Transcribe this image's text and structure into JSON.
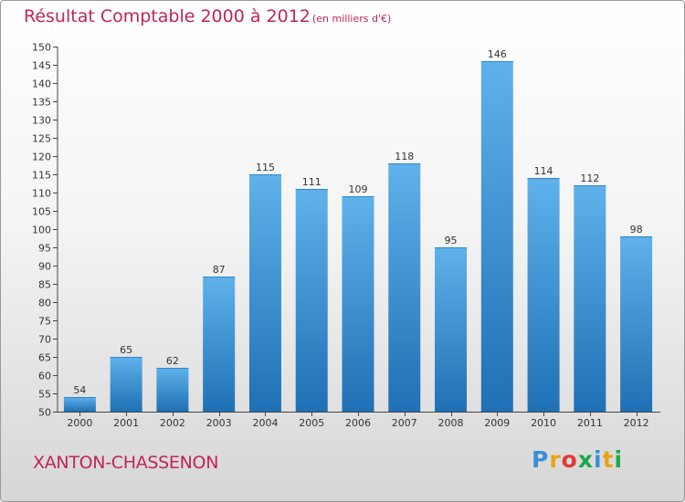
{
  "title": "Résultat Comptable 2000 à 2012",
  "subtitle": "(en milliers d'€)",
  "commune": "XANTON-CHASSENON",
  "logo": {
    "letters": [
      "P",
      "r",
      "o",
      "x",
      "i",
      "t",
      "i"
    ],
    "colors": [
      "#3a8fd6",
      "#e8a21a",
      "#e23a3a",
      "#1aa84a",
      "#3a8fd6",
      "#e8a21a",
      "#1aa84a"
    ]
  },
  "colors": {
    "bar_top": "#5fb2ea",
    "bar_bottom": "#1f70b5",
    "text": "#333333",
    "accent": "#c0245c"
  },
  "chart_data": {
    "type": "bar",
    "title": "Résultat Comptable 2000 à 2012",
    "xlabel": "",
    "ylabel": "",
    "categories": [
      "2000",
      "2001",
      "2002",
      "2003",
      "2004",
      "2005",
      "2006",
      "2007",
      "2008",
      "2009",
      "2010",
      "2011",
      "2012"
    ],
    "values": [
      54,
      65,
      62,
      87,
      115,
      111,
      109,
      118,
      95,
      146,
      114,
      112,
      98
    ],
    "ylim": [
      50,
      150
    ],
    "yticks": [
      50,
      55,
      60,
      65,
      70,
      75,
      80,
      85,
      90,
      95,
      100,
      105,
      110,
      115,
      120,
      125,
      130,
      135,
      140,
      145,
      150
    ],
    "grid": false,
    "legend": "none"
  }
}
